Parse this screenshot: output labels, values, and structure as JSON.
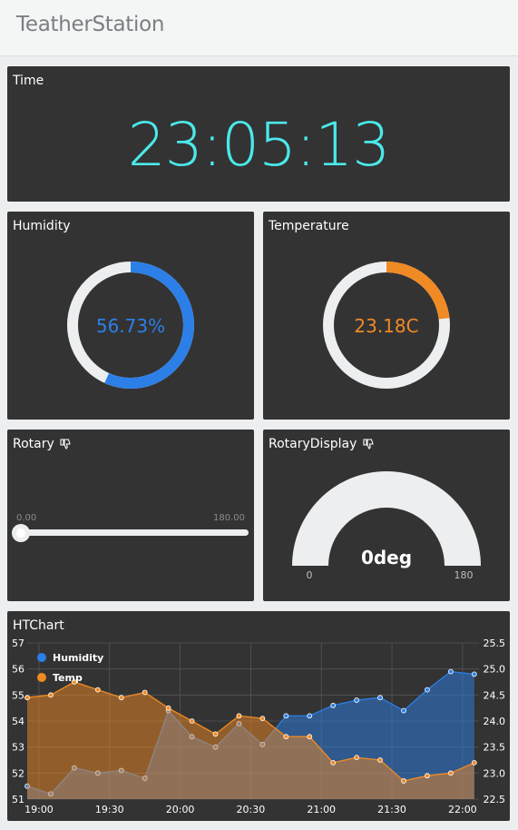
{
  "app": {
    "title": "TeatherStation"
  },
  "time_card": {
    "title": "Time",
    "value": "23:05:13"
  },
  "humidity_card": {
    "title": "Humidity",
    "value_text": "56.73%",
    "fraction": 0.5673,
    "color": "#2d7fe8"
  },
  "temperature_card": {
    "title": "Temperature",
    "value_text": "23.18C",
    "fraction": 0.2318,
    "color": "#f08a24"
  },
  "rotary_card": {
    "title": "Rotary",
    "min_label": "0.00",
    "max_label": "180.00",
    "value": 0
  },
  "rotary_display_card": {
    "title": "RotaryDisplay",
    "value_text": "0deg",
    "min_label": "0",
    "max_label": "180",
    "fraction": 0
  },
  "icons": {
    "rotary_status": "thumbs-down-icon",
    "rotary_display_status": "thumbs-down-icon"
  },
  "chart_card": {
    "title": "HTChart"
  },
  "chart_data": {
    "type": "area",
    "title": "HTChart",
    "x_ticks": [
      "19:00",
      "19:30",
      "20:00",
      "20:30",
      "21:00",
      "21:30",
      "22:00"
    ],
    "x_range": [
      "18:55",
      "22:07"
    ],
    "y_left": {
      "ticks": [
        "57",
        "56",
        "55",
        "54",
        "53",
        "52",
        "51"
      ],
      "range": [
        51,
        57
      ]
    },
    "y_right": {
      "ticks": [
        "25.5",
        "25.0",
        "24.5",
        "24.0",
        "23.5",
        "23.0",
        "22.5"
      ],
      "range": [
        22.5,
        25.5
      ]
    },
    "grid": true,
    "legend_position": "top-left",
    "series": [
      {
        "name": "Humidity",
        "axis": "left",
        "color": "#2d7fe8",
        "x": [
          "18:55",
          "19:05",
          "19:15",
          "19:25",
          "19:35",
          "19:45",
          "19:55",
          "20:05",
          "20:15",
          "20:25",
          "20:35",
          "20:45",
          "20:55",
          "21:05",
          "21:15",
          "21:25",
          "21:35",
          "21:45",
          "21:55",
          "22:05"
        ],
        "values": [
          51.5,
          51.2,
          52.2,
          52.0,
          52.1,
          51.8,
          54.4,
          53.4,
          53.0,
          53.9,
          53.1,
          54.2,
          54.2,
          54.6,
          54.8,
          54.9,
          54.4,
          55.2,
          55.9,
          55.8
        ]
      },
      {
        "name": "Temp",
        "axis": "right",
        "color": "#f08a24",
        "x": [
          "18:55",
          "19:05",
          "19:15",
          "19:25",
          "19:35",
          "19:45",
          "19:55",
          "20:05",
          "20:15",
          "20:25",
          "20:35",
          "20:45",
          "20:55",
          "21:05",
          "21:15",
          "21:25",
          "21:35",
          "21:45",
          "21:55",
          "22:05"
        ],
        "values": [
          24.45,
          24.5,
          24.75,
          24.6,
          24.45,
          24.55,
          24.25,
          24.0,
          23.75,
          24.1,
          24.05,
          23.7,
          23.7,
          23.2,
          23.3,
          23.25,
          22.85,
          22.95,
          23.0,
          23.2
        ]
      }
    ]
  }
}
